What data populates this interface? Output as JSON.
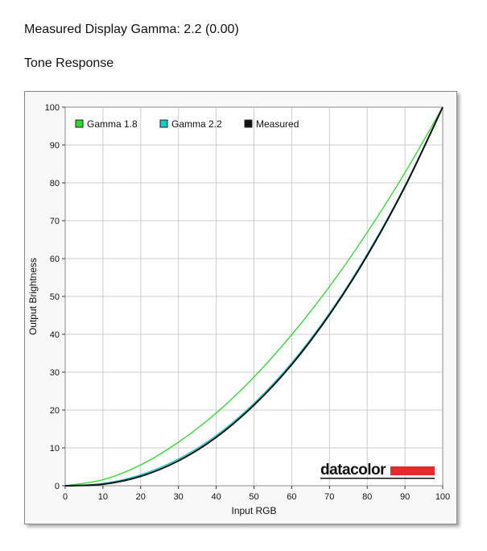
{
  "header": {
    "title": "Measured Display Gamma: 2.2 (0.00)",
    "subtitle": "Tone Response"
  },
  "brand": {
    "logo_text": "datacolor",
    "accent_color": "#e8292b"
  },
  "colors": {
    "gamma18": "#22dd22",
    "gamma22": "#11cccc",
    "measured": "#111111",
    "grid": "#cccccc",
    "plot_bg": "#ffffff"
  },
  "chart_data": {
    "type": "line",
    "title": "",
    "xlabel": "Input RGB",
    "ylabel": "Output Brightness",
    "xlim": [
      0,
      100
    ],
    "ylim": [
      0,
      100
    ],
    "xticks": [
      0,
      10,
      20,
      30,
      40,
      50,
      60,
      70,
      80,
      90,
      100
    ],
    "yticks": [
      0,
      10,
      20,
      30,
      40,
      50,
      60,
      70,
      80,
      90,
      100
    ],
    "grid": true,
    "legend_position": "top-left",
    "x": [
      0,
      10,
      20,
      30,
      40,
      50,
      60,
      70,
      80,
      90,
      100
    ],
    "series": [
      {
        "name": "Gamma 1.8",
        "color": "#22dd22",
        "values": [
          0,
          1.6,
          5.5,
          11.5,
          19.2,
          28.7,
          39.9,
          52.6,
          66.9,
          82.7,
          100
        ]
      },
      {
        "name": "Gamma 2.2",
        "color": "#11cccc",
        "values": [
          0,
          0.6,
          2.9,
          7.1,
          13.3,
          21.8,
          32.5,
          45.6,
          61.2,
          79.3,
          100
        ]
      },
      {
        "name": "Measured",
        "color": "#111111",
        "values": [
          0,
          0.4,
          2.5,
          6.6,
          12.8,
          21.3,
          32.0,
          45.2,
          60.8,
          79.0,
          100
        ]
      }
    ]
  }
}
